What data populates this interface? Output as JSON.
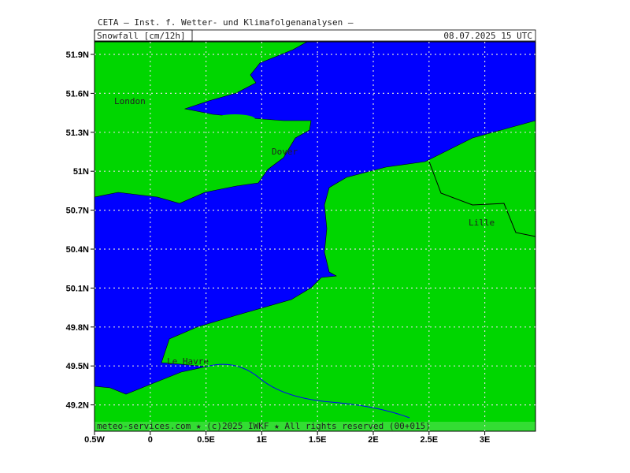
{
  "header": {
    "title": "CETA — Inst. f. Wetter- und Klimafolgenanalysen —",
    "variable": "Snowfall [cm/12h]",
    "valid_time": "08.07.2025 15 UTC"
  },
  "axes": {
    "latitude_labels": [
      "51.9N",
      "51.6N",
      "51.3N",
      "51N",
      "50.7N",
      "50.4N",
      "50.1N",
      "49.8N",
      "49.5N",
      "49.2N"
    ],
    "longitude_labels": [
      "0.5W",
      "0",
      "0.5E",
      "1E",
      "1.5E",
      "2E",
      "2.5E",
      "3E"
    ]
  },
  "places": [
    "London",
    "Dover",
    "Lille",
    "Le Havre"
  ],
  "footer": "meteo-services.com ★ (c)2025 IWKF ★ All rights reserved (00+015)"
}
